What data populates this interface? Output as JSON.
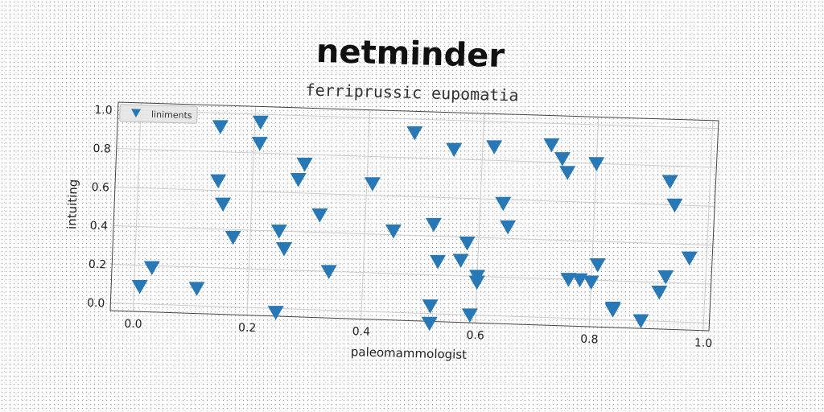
{
  "header": {
    "title": "netminder",
    "subtitle": "ferriprussic eupomatia"
  },
  "colors": {
    "marker": "#2878b5",
    "grid": "#cccccc",
    "frame": "#444444"
  },
  "chart_data": {
    "type": "scatter",
    "title": "ferriprussic eupomatia",
    "xlabel": "paleomammologist",
    "ylabel": "intuiting",
    "xlim": [
      -0.04,
      1.01
    ],
    "ylim": [
      -0.04,
      1.04
    ],
    "xticks": [
      "0.0",
      "0.2",
      "0.4",
      "0.6",
      "0.8",
      "1.0"
    ],
    "yticks": [
      "0.0",
      "0.2",
      "0.4",
      "0.6",
      "0.8",
      "1.0"
    ],
    "grid": true,
    "legend_position": "top-left",
    "marker": "triangle-down",
    "series": [
      {
        "name": "liniments",
        "points": [
          [
            0.01,
            0.09
          ],
          [
            0.03,
            0.19
          ],
          [
            0.11,
            0.09
          ],
          [
            0.14,
            0.93
          ],
          [
            0.14,
            0.65
          ],
          [
            0.15,
            0.53
          ],
          [
            0.17,
            0.36
          ],
          [
            0.21,
            0.96
          ],
          [
            0.21,
            0.85
          ],
          [
            0.25,
            0.4
          ],
          [
            0.25,
            -0.02
          ],
          [
            0.26,
            0.31
          ],
          [
            0.28,
            0.67
          ],
          [
            0.29,
            0.75
          ],
          [
            0.32,
            0.49
          ],
          [
            0.34,
            0.2
          ],
          [
            0.41,
            0.66
          ],
          [
            0.45,
            0.42
          ],
          [
            0.48,
            0.93
          ],
          [
            0.52,
            0.46
          ],
          [
            0.52,
            0.04
          ],
          [
            0.52,
            -0.05
          ],
          [
            0.53,
            0.27
          ],
          [
            0.55,
            0.85
          ],
          [
            0.57,
            0.28
          ],
          [
            0.58,
            0.37
          ],
          [
            0.59,
            0.0
          ],
          [
            0.6,
            0.2
          ],
          [
            0.6,
            0.17
          ],
          [
            0.62,
            0.87
          ],
          [
            0.64,
            0.58
          ],
          [
            0.65,
            0.46
          ],
          [
            0.72,
            0.89
          ],
          [
            0.74,
            0.82
          ],
          [
            0.75,
            0.75
          ],
          [
            0.76,
            0.2
          ],
          [
            0.78,
            0.2
          ],
          [
            0.8,
            0.19
          ],
          [
            0.8,
            0.8
          ],
          [
            0.81,
            0.28
          ],
          [
            0.84,
            0.06
          ],
          [
            0.84,
            0.05
          ],
          [
            0.89,
            0.0
          ],
          [
            0.92,
            0.15
          ],
          [
            0.93,
            0.23
          ],
          [
            0.93,
            0.72
          ],
          [
            0.94,
            0.6
          ],
          [
            0.97,
            0.33
          ]
        ]
      }
    ]
  }
}
